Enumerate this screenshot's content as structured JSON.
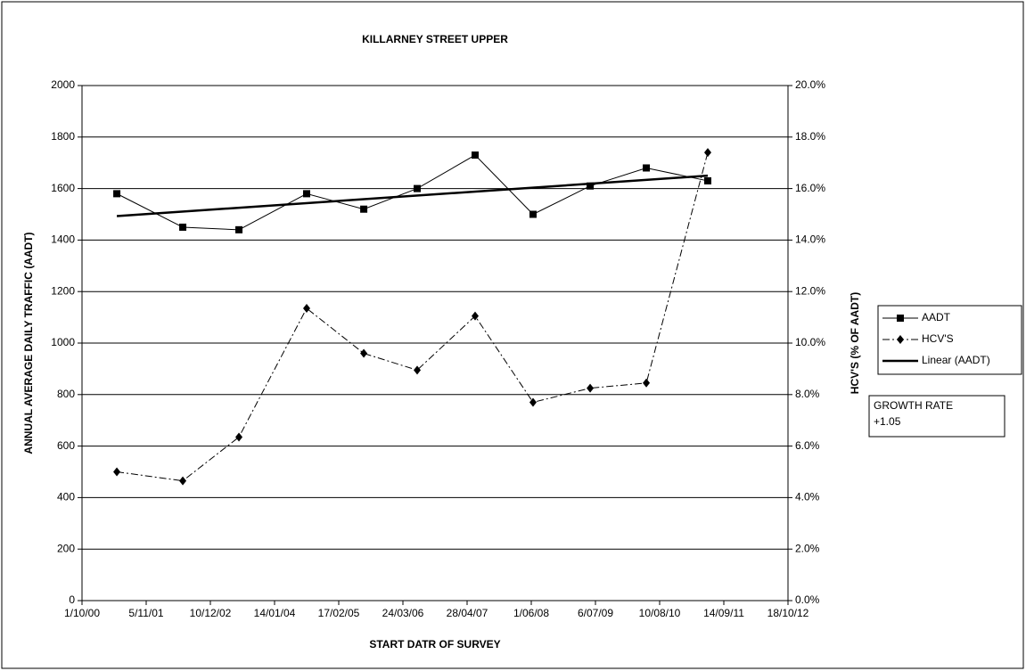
{
  "chart_data": {
    "type": "line",
    "title": "KILLARNEY STREET UPPER",
    "xlabel": "START DATR OF SURVEY",
    "ylabel": "ANNUAL AVERAGE DAILY TRAFFIC (AADT)",
    "y2label": "HCV'S (% OF AADT)",
    "x": [
      37017,
      37428,
      37778,
      38200,
      38556,
      38889,
      39250,
      39611,
      39967,
      40317,
      40700
    ],
    "series": [
      {
        "name": "AADT",
        "color": "#000000",
        "values": [
          1580,
          1450,
          1440,
          1580,
          1520,
          1600,
          1730,
          1500,
          1610,
          1680,
          1630
        ]
      },
      {
        "name": "HCV'S",
        "color": "#000000",
        "axis": "y2",
        "values": [
          5.0,
          4.65,
          6.35,
          11.35,
          9.6,
          8.95,
          11.05,
          7.7,
          8.25,
          8.45,
          17.4
        ]
      },
      {
        "name": "Linear (AADT)",
        "color": "#000000",
        "x": [
          37017,
          40700
        ],
        "values": [
          1493,
          1650
        ]
      }
    ],
    "xlim": [
      36800,
      41200
    ],
    "xticks": [
      {
        "value": 36800,
        "label": "1/10/00"
      },
      {
        "value": 37200,
        "label": "5/11/01"
      },
      {
        "value": 37600,
        "label": "10/12/02"
      },
      {
        "value": 38000,
        "label": "14/01/04"
      },
      {
        "value": 38400,
        "label": "17/02/05"
      },
      {
        "value": 38800,
        "label": "24/03/06"
      },
      {
        "value": 39200,
        "label": "28/04/07"
      },
      {
        "value": 39600,
        "label": "1/06/08"
      },
      {
        "value": 40000,
        "label": "6/07/09"
      },
      {
        "value": 40400,
        "label": "10/08/10"
      },
      {
        "value": 40800,
        "label": "14/09/11"
      },
      {
        "value": 41200,
        "label": "18/10/12"
      }
    ],
    "ylim": [
      0,
      2000
    ],
    "yticks": [
      0,
      200,
      400,
      600,
      800,
      1000,
      1200,
      1400,
      1600,
      1800,
      2000
    ],
    "y2lim": [
      0,
      20
    ],
    "y2ticks": [
      {
        "value": 0,
        "label": "0.0%"
      },
      {
        "value": 2,
        "label": "2.0%"
      },
      {
        "value": 4,
        "label": "4.0%"
      },
      {
        "value": 6,
        "label": "6.0%"
      },
      {
        "value": 8,
        "label": "8.0%"
      },
      {
        "value": 10,
        "label": "10.0%"
      },
      {
        "value": 12,
        "label": "12.0%"
      },
      {
        "value": 14,
        "label": "14.0%"
      },
      {
        "value": 16,
        "label": "16.0%"
      },
      {
        "value": 18,
        "label": "18.0%"
      },
      {
        "value": 20,
        "label": "20.0%"
      }
    ],
    "grid": true,
    "legend": "right",
    "annotations": [
      "GROWTH RATE",
      "+1.05"
    ]
  }
}
